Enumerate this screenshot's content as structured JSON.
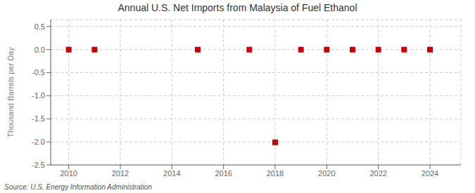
{
  "chart_data": {
    "type": "scatter",
    "title": "Annual U.S. Net Imports from Malaysia of Fuel Ethanol",
    "y_label": "Thousand Barrels per Day",
    "annotations": [
      "Source: U.S. Energy Information Administration"
    ],
    "x": [
      2010,
      2011,
      2015,
      2017,
      2018,
      2019,
      2020,
      2021,
      2022,
      2023,
      2024
    ],
    "values": [
      0.0,
      0.0,
      0.0,
      0.0,
      -2.01,
      0.0,
      0.0,
      0.0,
      0.0,
      0.0,
      0.0
    ],
    "color": "#cc0000",
    "marker": "square",
    "xlim": [
      2009.3,
      2025.2
    ],
    "ylim": [
      -2.5,
      0.65
    ],
    "xticks": [
      2010,
      2012,
      2014,
      2016,
      2018,
      2020,
      2022,
      2024
    ],
    "yticks": [
      0.5,
      {
        "value": 0,
        "label": "0.0"
      },
      -0.5,
      {
        "value": -1,
        "label": "-1.0"
      },
      -1.5,
      {
        "value": -2,
        "label": "-2.0"
      },
      -2.5
    ],
    "grid": true
  }
}
